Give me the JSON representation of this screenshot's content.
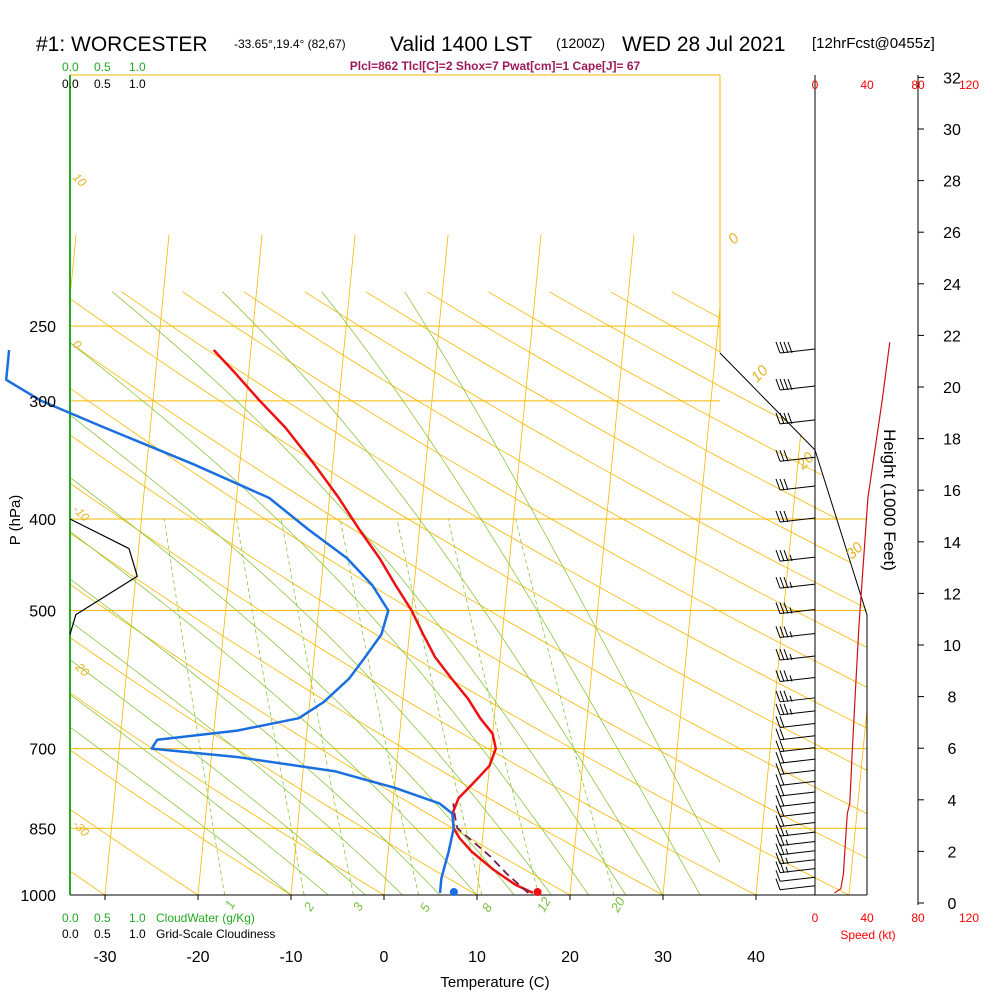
{
  "header": {
    "station": "#1: WORCESTER",
    "coords": "-33.65°,19.4° (82,67)",
    "valid": "Valid 1400 LST",
    "utc": "(1200Z)",
    "date": "WED 28 Jul 2021",
    "forecast": "[12hrFcst@0455z]",
    "indices": "Plcl=862 Tlcl[C]=2 Shox=7 Pwat[cm]=1 Cape[J]= 67"
  },
  "scales": {
    "cloudwater_top": [
      "0.0",
      "0.5",
      "1.0"
    ],
    "cloudiness_top": [
      "0.0",
      "0.5",
      "1.0"
    ],
    "cloudwater_bottom": [
      "0.0",
      "0.5",
      "1.0"
    ],
    "cloudwater_label": "CloudWater (g/Kg)",
    "cloudiness_bottom": [
      "0.0",
      "0.5",
      "1.0"
    ],
    "cloudiness_label": "Grid-Scale Cloudiness",
    "speed_ticks": [
      "0",
      "40",
      "80",
      "120"
    ],
    "speed_label": "Speed (kt)"
  },
  "chart_data": {
    "type": "line",
    "title": "Skew-T Sounding",
    "xlabel": "Temperature (C)",
    "ylabel": "P (hPa)",
    "y2label": "Height (1000 Feet)",
    "x_ticks": [
      -30,
      -20,
      -10,
      0,
      10,
      20,
      30,
      40
    ],
    "p_ticks": [
      250,
      300,
      400,
      500,
      700,
      850,
      1000
    ],
    "height_ticks": [
      0,
      2,
      4,
      6,
      8,
      10,
      12,
      14,
      16,
      18,
      20,
      22,
      24,
      26,
      28,
      30,
      32
    ],
    "dry_adiabat_labels": [
      "0",
      "10",
      "20",
      "30"
    ],
    "isotherm_labels": [
      "10",
      "0",
      "-10",
      "-20",
      "-30"
    ],
    "mixing_ratio_labels": [
      "1",
      "2",
      "3",
      "5",
      "8",
      "12",
      "20"
    ],
    "series": [
      {
        "name": "temperature",
        "color": "#ee1111",
        "points": [
          [
            16,
            995
          ],
          [
            14,
            975
          ],
          [
            11.5,
            940
          ],
          [
            9,
            900
          ],
          [
            7.5,
            870
          ],
          [
            6.8,
            850
          ],
          [
            6.5,
            820
          ],
          [
            7,
            790
          ],
          [
            8.5,
            760
          ],
          [
            10,
            730
          ],
          [
            10.5,
            700
          ],
          [
            10,
            675
          ],
          [
            8.5,
            650
          ],
          [
            7,
            620
          ],
          [
            5,
            590
          ],
          [
            3,
            560
          ],
          [
            1.5,
            530
          ],
          [
            0,
            500
          ],
          [
            -2,
            470
          ],
          [
            -4,
            440
          ],
          [
            -6.5,
            410
          ],
          [
            -9,
            380
          ],
          [
            -12,
            350
          ],
          [
            -15.5,
            320
          ],
          [
            -18.5,
            300
          ],
          [
            -21.5,
            280
          ],
          [
            -24,
            265
          ]
        ]
      },
      {
        "name": "dewpoint",
        "color": "#1a6fe0",
        "points": [
          [
            6,
            995
          ],
          [
            6,
            960
          ],
          [
            6.5,
            900
          ],
          [
            6.8,
            850
          ],
          [
            6.5,
            820
          ],
          [
            5,
            800
          ],
          [
            0,
            770
          ],
          [
            -6.5,
            740
          ],
          [
            -17,
            715
          ],
          [
            -26.5,
            700
          ],
          [
            -26,
            685
          ],
          [
            -17.5,
            670
          ],
          [
            -11,
            650
          ],
          [
            -8.5,
            625
          ],
          [
            -6,
            590
          ],
          [
            -4.5,
            560
          ],
          [
            -3,
            530
          ],
          [
            -2.5,
            500
          ],
          [
            -4.5,
            470
          ],
          [
            -7.5,
            440
          ],
          [
            -12,
            410
          ],
          [
            -16.5,
            380
          ],
          [
            -25,
            350
          ],
          [
            -35,
            320
          ],
          [
            -42,
            300
          ],
          [
            -46,
            285
          ],
          [
            -46,
            265
          ]
        ]
      },
      {
        "name": "parcel",
        "color": "#7a1a4a",
        "style": "dashed",
        "points": [
          [
            15.5,
            995
          ],
          [
            13,
            950
          ],
          [
            11,
            910
          ],
          [
            8.5,
            870
          ],
          [
            7.2,
            850
          ],
          [
            6.8,
            825
          ],
          [
            6.5,
            800
          ]
        ]
      },
      {
        "name": "cloudiness",
        "color": "#000000",
        "unit": "fraction 0-1",
        "points": [
          [
            0.0,
            400
          ],
          [
            0.5,
            430
          ],
          [
            0.57,
            460
          ],
          [
            0.05,
            505
          ],
          [
            0.0,
            530
          ]
        ]
      },
      {
        "name": "wind_speed",
        "color": "#cc1111",
        "unit": "kt",
        "points": [
          [
            15,
            995
          ],
          [
            20,
            985
          ],
          [
            22,
            950
          ],
          [
            24,
            860
          ],
          [
            25,
            820
          ],
          [
            27,
            800
          ],
          [
            29,
            700
          ],
          [
            31,
            620
          ],
          [
            34,
            520
          ],
          [
            41,
            380
          ],
          [
            52,
            300
          ],
          [
            58,
            260
          ]
        ]
      }
    ],
    "surface_markers": {
      "temperature": 16.5,
      "dewpoint": 7.5
    },
    "wind_barbs": [
      {
        "p": 265,
        "spd": 40
      },
      {
        "p": 290,
        "spd": 40
      },
      {
        "p": 315,
        "spd": 40
      },
      {
        "p": 345,
        "spd": 30
      },
      {
        "p": 370,
        "spd": 30
      },
      {
        "p": 400,
        "spd": 30
      },
      {
        "p": 440,
        "spd": 25
      },
      {
        "p": 470,
        "spd": 25
      },
      {
        "p": 500,
        "spd": 25
      },
      {
        "p": 530,
        "spd": 25
      },
      {
        "p": 560,
        "spd": 25
      },
      {
        "p": 590,
        "spd": 25
      },
      {
        "p": 620,
        "spd": 25
      },
      {
        "p": 640,
        "spd": 25
      },
      {
        "p": 660,
        "spd": 20
      },
      {
        "p": 680,
        "spd": 20
      },
      {
        "p": 700,
        "spd": 20
      },
      {
        "p": 720,
        "spd": 20
      },
      {
        "p": 740,
        "spd": 20
      },
      {
        "p": 760,
        "spd": 20
      },
      {
        "p": 780,
        "spd": 20
      },
      {
        "p": 800,
        "spd": 20
      },
      {
        "p": 820,
        "spd": 20
      },
      {
        "p": 840,
        "spd": 20
      },
      {
        "p": 860,
        "spd": 15
      },
      {
        "p": 880,
        "spd": 15
      },
      {
        "p": 900,
        "spd": 15
      },
      {
        "p": 920,
        "spd": 15
      },
      {
        "p": 940,
        "spd": 15
      },
      {
        "p": 960,
        "spd": 10
      },
      {
        "p": 980,
        "spd": 10
      }
    ]
  },
  "colors": {
    "isobar": "#f5b800",
    "isotherm": "#f5b800",
    "dry_adiabat": "#f5b800",
    "moist_adiabat": "#8cc63f",
    "mixing_ratio": "#8cc63f",
    "cloudwater_axis": "#22aa22"
  }
}
